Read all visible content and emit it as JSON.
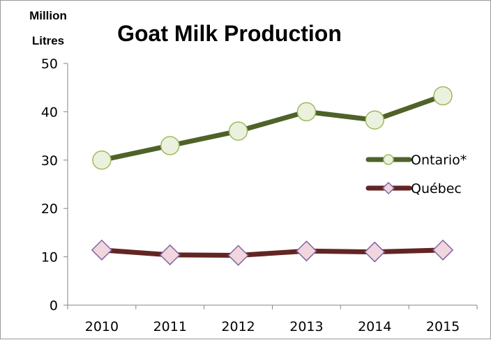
{
  "chart_data": {
    "type": "line",
    "title": "Goat Milk Production",
    "ylabel": [
      "Million",
      "Litres"
    ],
    "xlabel": "",
    "x": [
      "2010",
      "2011",
      "2012",
      "2013",
      "2014",
      "2015"
    ],
    "ylim": [
      0,
      50
    ],
    "yticks": [
      "0",
      "10",
      "20",
      "30",
      "40",
      "50"
    ],
    "grid": false,
    "legend_position": "right",
    "series": [
      {
        "name": "Ontario*",
        "values": [
          30,
          33,
          36,
          40,
          38.3,
          43.3
        ],
        "color": "#4f6228",
        "marker": "circle",
        "marker_fill": "#ebf1de"
      },
      {
        "name": "Québec",
        "values": [
          11.4,
          10.4,
          10.3,
          11.2,
          11.0,
          11.4
        ],
        "color": "#632523",
        "marker": "diamond",
        "marker_fill": "#f2d6de"
      }
    ]
  }
}
